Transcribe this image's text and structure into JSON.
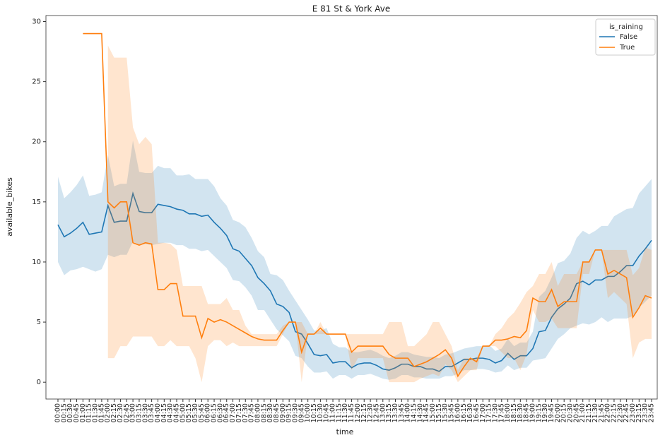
{
  "chart_data": {
    "type": "line",
    "title": "E 81 St & York Ave",
    "x_label": "time",
    "y_label": "available_bikes",
    "legend_title": "is_raining",
    "legend": "upper right",
    "ylim": [
      -1.4,
      30.5
    ],
    "yticks": [
      0,
      5,
      10,
      15,
      20,
      25,
      30
    ],
    "categories": [
      "00:00",
      "00:15",
      "00:30",
      "00:45",
      "01:00",
      "01:15",
      "01:30",
      "01:45",
      "02:00",
      "02:15",
      "02:30",
      "02:45",
      "03:00",
      "03:15",
      "03:30",
      "03:45",
      "04:00",
      "04:15",
      "04:30",
      "04:45",
      "05:00",
      "05:15",
      "05:30",
      "05:45",
      "06:00",
      "06:15",
      "06:30",
      "06:45",
      "07:00",
      "07:15",
      "07:30",
      "07:45",
      "08:00",
      "08:15",
      "08:30",
      "08:45",
      "09:00",
      "09:15",
      "09:30",
      "09:45",
      "10:00",
      "10:15",
      "10:30",
      "10:45",
      "11:00",
      "11:15",
      "11:30",
      "11:45",
      "12:00",
      "12:15",
      "12:30",
      "12:45",
      "13:00",
      "13:15",
      "13:30",
      "13:45",
      "14:00",
      "14:15",
      "14:30",
      "14:45",
      "15:00",
      "15:15",
      "15:30",
      "15:45",
      "16:00",
      "16:15",
      "16:30",
      "16:45",
      "17:00",
      "17:15",
      "17:30",
      "17:45",
      "18:00",
      "18:15",
      "18:30",
      "18:45",
      "19:00",
      "19:15",
      "19:30",
      "19:45",
      "20:00",
      "20:15",
      "20:30",
      "20:45",
      "21:00",
      "21:15",
      "21:30",
      "21:45",
      "22:00",
      "22:15",
      "22:30",
      "22:45",
      "23:00",
      "23:15",
      "23:30",
      "23:45"
    ],
    "series": [
      {
        "name": "False",
        "color": "#1f77b4",
        "band_color": "rgba(31,119,180,0.2)",
        "values": [
          13.1,
          12.1,
          12.4,
          12.8,
          13.3,
          12.3,
          12.4,
          12.5,
          14.7,
          13.3,
          13.4,
          13.4,
          15.7,
          14.2,
          14.1,
          14.1,
          14.8,
          14.7,
          14.6,
          14.4,
          14.3,
          14.0,
          14.0,
          13.8,
          13.9,
          13.3,
          12.8,
          12.2,
          11.1,
          10.9,
          10.3,
          9.7,
          8.7,
          8.2,
          7.6,
          6.5,
          6.3,
          5.8,
          4.2,
          4.0,
          3.2,
          2.3,
          2.2,
          2.3,
          1.6,
          1.7,
          1.7,
          1.2,
          1.5,
          1.6,
          1.6,
          1.4,
          1.1,
          1.0,
          1.2,
          1.5,
          1.5,
          1.3,
          1.3,
          1.1,
          1.1,
          0.9,
          1.3,
          1.3,
          1.6,
          1.9,
          1.9,
          2.0,
          2.0,
          1.9,
          1.6,
          1.8,
          2.4,
          1.9,
          2.2,
          2.2,
          2.8,
          4.2,
          4.3,
          5.4,
          6.1,
          6.5,
          7.0,
          8.2,
          8.4,
          8.1,
          8.5,
          8.5,
          8.8,
          8.8,
          9.2,
          9.7,
          9.7,
          10.5,
          11.1,
          11.8
        ],
        "upper": [
          17.1,
          15.3,
          15.8,
          16.4,
          17.2,
          15.5,
          15.6,
          15.8,
          18.9,
          16.3,
          16.5,
          16.5,
          20.1,
          17.5,
          17.4,
          17.4,
          18.0,
          17.8,
          17.8,
          17.2,
          17.2,
          17.3,
          16.9,
          16.9,
          16.9,
          16.3,
          15.3,
          14.7,
          13.5,
          13.3,
          12.9,
          12.0,
          10.9,
          10.4,
          9.0,
          8.9,
          8.5,
          7.6,
          6.8,
          6.0,
          5.2,
          4.3,
          4.3,
          4.5,
          3.2,
          2.9,
          2.9,
          2.5,
          2.5,
          2.6,
          2.7,
          2.5,
          2.2,
          2.0,
          2.2,
          2.5,
          2.5,
          2.3,
          2.2,
          2.1,
          2.1,
          2.0,
          2.3,
          2.4,
          2.6,
          2.8,
          2.9,
          3.0,
          3.0,
          3.1,
          2.6,
          2.8,
          3.6,
          3.0,
          3.3,
          3.3,
          4.2,
          7.1,
          7.6,
          8.7,
          9.9,
          10.1,
          10.7,
          12.0,
          12.6,
          12.3,
          12.6,
          13.0,
          13.0,
          13.8,
          14.1,
          14.4,
          14.5,
          15.7,
          16.3,
          16.9
        ],
        "lower": [
          10.0,
          8.9,
          9.3,
          9.4,
          9.6,
          9.4,
          9.2,
          9.4,
          10.6,
          10.4,
          10.6,
          10.6,
          11.7,
          11.4,
          11.5,
          11.4,
          11.5,
          11.6,
          11.6,
          11.4,
          11.4,
          11.1,
          11.1,
          10.9,
          11.0,
          10.5,
          10.0,
          9.5,
          8.5,
          8.4,
          7.9,
          7.2,
          6.0,
          6.0,
          5.2,
          4.4,
          3.9,
          3.4,
          2.2,
          2.0,
          1.3,
          0.8,
          0.8,
          0.9,
          0.3,
          0.6,
          0.6,
          0.3,
          0.6,
          0.6,
          0.7,
          0.5,
          0.3,
          0.2,
          0.3,
          0.6,
          0.6,
          0.4,
          0.4,
          0.3,
          0.3,
          0.3,
          0.5,
          0.5,
          0.7,
          1.0,
          1.0,
          1.1,
          1.1,
          1.0,
          0.8,
          0.9,
          1.4,
          1.0,
          1.2,
          1.2,
          1.8,
          1.9,
          2.0,
          2.8,
          3.6,
          4.0,
          4.5,
          4.7,
          4.9,
          4.8,
          5.0,
          5.4,
          5.0,
          5.3,
          5.3,
          5.3,
          5.5,
          6.2,
          6.7,
          7.2
        ]
      },
      {
        "name": "True",
        "color": "#ff7f0e",
        "band_color": "rgba(255,127,14,0.2)",
        "values": [
          null,
          null,
          null,
          null,
          29,
          29,
          29,
          29,
          15.0,
          14.5,
          15.0,
          15.0,
          11.6,
          11.4,
          11.6,
          11.5,
          7.7,
          7.7,
          8.2,
          8.2,
          5.5,
          5.5,
          5.5,
          3.7,
          5.3,
          5.0,
          5.2,
          5.0,
          4.7,
          4.4,
          4.1,
          3.8,
          3.6,
          3.5,
          3.5,
          3.5,
          4.3,
          5.0,
          5.0,
          2.5,
          4.0,
          4.0,
          4.5,
          4.0,
          4.0,
          4.0,
          4.0,
          2.5,
          3.0,
          3.0,
          3.0,
          3.0,
          3.0,
          2.3,
          2.0,
          2.0,
          2.0,
          1.3,
          1.5,
          1.7,
          2.0,
          2.3,
          2.7,
          2.0,
          0.5,
          1.3,
          2.0,
          1.7,
          3.0,
          3.0,
          3.5,
          3.5,
          3.6,
          3.8,
          3.7,
          4.3,
          7.0,
          6.7,
          6.7,
          7.7,
          6.3,
          6.7,
          6.7,
          6.7,
          10.0,
          10.0,
          11.0,
          11.0,
          9.0,
          9.3,
          9.0,
          8.7,
          5.4,
          6.2,
          7.2,
          7.0
        ],
        "upper": [
          null,
          null,
          null,
          null,
          null,
          null,
          null,
          null,
          28,
          27,
          27,
          27,
          21.2,
          19.8,
          20.4,
          19.8,
          11.6,
          11.6,
          11.5,
          11.0,
          8.0,
          8.0,
          8.0,
          8.0,
          6.5,
          6.5,
          6.5,
          7.0,
          6.0,
          6.0,
          4.7,
          4.0,
          4,
          4,
          4,
          4,
          4.7,
          5,
          5,
          5,
          4,
          4,
          5,
          4,
          4,
          4,
          4,
          4,
          4,
          4,
          4,
          4,
          4,
          5,
          5,
          5,
          3.0,
          3.0,
          3.5,
          4.0,
          5.0,
          5.0,
          4.0,
          3.0,
          1.0,
          2.0,
          2.0,
          2.0,
          3.0,
          3.0,
          4.0,
          4.5,
          5.3,
          5.8,
          6.6,
          7.5,
          8.0,
          9.0,
          9.0,
          10.0,
          8,
          9,
          9,
          9,
          10,
          10,
          11,
          11,
          11,
          11,
          11,
          11,
          8.9,
          9.5,
          11.2,
          11.0
        ],
        "lower": [
          null,
          null,
          null,
          null,
          null,
          null,
          null,
          null,
          2,
          2,
          3,
          3,
          3.8,
          3.8,
          3.8,
          3.8,
          3,
          3,
          3.5,
          3,
          3,
          3,
          2,
          0,
          3,
          3.5,
          3.5,
          3,
          3.3,
          3,
          3,
          3,
          3,
          3,
          3,
          3,
          4,
          5,
          5,
          0,
          4,
          4,
          4,
          4,
          4,
          4,
          4,
          1,
          2,
          2,
          2,
          2,
          2,
          0,
          0,
          0,
          0,
          0,
          0.3,
          0.5,
          0.7,
          0.5,
          1.5,
          1,
          0,
          0.5,
          1,
          1,
          3,
          3,
          3,
          2.5,
          2,
          2,
          1,
          2.3,
          6,
          5,
          5,
          5.3,
          4.5,
          4.5,
          4.5,
          4.5,
          9,
          9,
          11,
          11,
          7,
          7.5,
          7,
          6.5,
          2,
          3.3,
          3.6,
          3.6
        ]
      }
    ]
  }
}
